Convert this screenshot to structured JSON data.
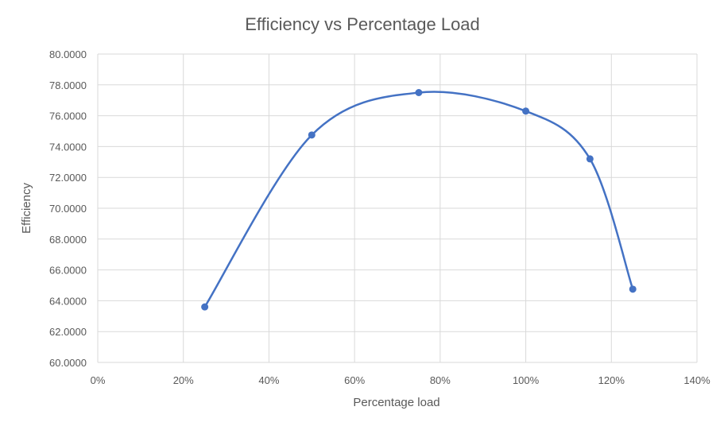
{
  "chart_data": {
    "type": "scatter",
    "title": "Efficiency vs Percentage Load",
    "xlabel": "Percentage load",
    "ylabel": "Efficiency",
    "xlim": [
      0,
      140
    ],
    "ylim": [
      60,
      80
    ],
    "x_ticks": [
      0,
      20,
      40,
      60,
      80,
      100,
      120,
      140
    ],
    "x_tick_labels": [
      "0%",
      "20%",
      "40%",
      "60%",
      "80%",
      "100%",
      "120%",
      "140%"
    ],
    "y_ticks": [
      60,
      62,
      64,
      66,
      68,
      70,
      72,
      74,
      76,
      78,
      80
    ],
    "y_tick_labels": [
      "60.0000",
      "62.0000",
      "64.0000",
      "66.0000",
      "68.0000",
      "70.0000",
      "72.0000",
      "74.0000",
      "76.0000",
      "78.0000",
      "80.0000"
    ],
    "grid": true,
    "smooth_line": true,
    "series": [
      {
        "x": [
          25,
          50,
          75,
          100,
          115,
          125
        ],
        "y": [
          63.6,
          74.75,
          77.5,
          76.3,
          73.2,
          64.75
        ],
        "color": "#4472c4"
      }
    ]
  }
}
